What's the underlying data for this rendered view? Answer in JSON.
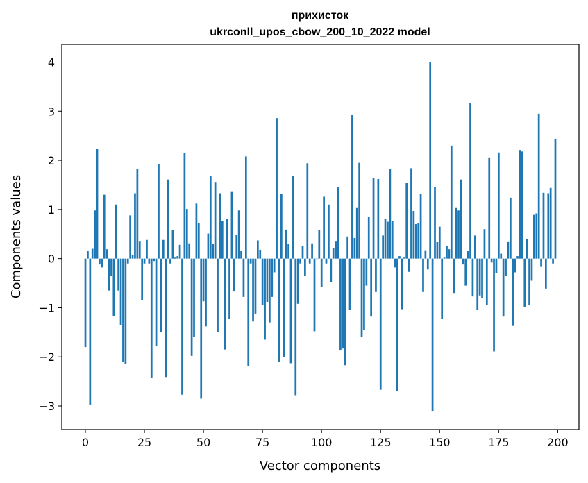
{
  "chart_data": {
    "type": "bar",
    "title": "прихисток",
    "subtitle": "ukrconll_upos_cbow_200_10_2022 model",
    "xlabel": "Vector components",
    "ylabel": "Components values",
    "xlim": [
      -10,
      209
    ],
    "ylim": [
      -3.48,
      4.36
    ],
    "xticks": [
      0,
      25,
      50,
      75,
      100,
      125,
      150,
      175,
      200
    ],
    "yticks": [
      -3,
      -2,
      -1,
      0,
      1,
      2,
      3,
      4
    ],
    "bar_color": "#1f77b4",
    "grid": false,
    "values": [
      -1.8,
      0.15,
      -2.97,
      0.2,
      0.98,
      2.24,
      -0.12,
      -0.18,
      1.3,
      0.19,
      -0.65,
      -0.35,
      -1.17,
      1.1,
      -0.65,
      -1.35,
      -2.1,
      -2.15,
      -0.1,
      0.88,
      0.08,
      1.33,
      1.83,
      0.36,
      -0.84,
      -0.1,
      0.38,
      -0.1,
      -2.43,
      -0.05,
      -1.78,
      1.93,
      -1.5,
      0.38,
      -2.41,
      1.61,
      -0.1,
      0.58,
      0.02,
      0.05,
      0.28,
      -2.77,
      2.15,
      1.01,
      0.31,
      -1.98,
      -1.6,
      1.12,
      0.73,
      -2.85,
      -0.87,
      -1.38,
      0.51,
      1.69,
      0.3,
      1.56,
      -1.5,
      1.33,
      0.77,
      -1.85,
      0.8,
      -1.22,
      1.37,
      -0.67,
      0.48,
      0.98,
      0.16,
      -0.78,
      2.08,
      -2.18,
      -0.1,
      -1.28,
      -1.12,
      0.37,
      0.18,
      -0.95,
      -1.65,
      -0.88,
      -1.3,
      -0.78,
      -0.28,
      2.86,
      -2.1,
      1.31,
      -2.0,
      0.59,
      0.3,
      -2.13,
      1.69,
      -2.78,
      -0.92,
      -0.1,
      0.25,
      -0.35,
      1.94,
      -0.1,
      0.31,
      -1.48,
      0.0,
      0.58,
      -0.58,
      1.26,
      -0.1,
      1.1,
      -0.48,
      0.22,
      0.36,
      1.46,
      -1.87,
      -1.83,
      -2.17,
      0.45,
      -1.05,
      2.93,
      0.42,
      1.03,
      1.95,
      -1.6,
      -1.45,
      -0.55,
      0.85,
      -1.18,
      1.64,
      -0.68,
      1.62,
      -2.67,
      0.47,
      0.81,
      0.75,
      1.82,
      0.77,
      -0.18,
      -2.69,
      0.05,
      -1.03,
      0.02,
      1.54,
      -0.27,
      1.84,
      0.97,
      0.7,
      0.72,
      1.32,
      -0.68,
      0.17,
      -0.22,
      4.0,
      -3.1,
      1.45,
      0.34,
      0.65,
      -1.23,
      0.02,
      0.26,
      0.19,
      2.3,
      -0.7,
      1.03,
      0.98,
      1.61,
      -0.12,
      -0.55,
      0.16,
      3.16,
      -0.77,
      0.47,
      -1.04,
      -0.75,
      -0.8,
      0.6,
      -0.95,
      2.06,
      -0.08,
      -1.89,
      -0.3,
      2.16,
      0.1,
      -1.18,
      -0.35,
      0.35,
      1.24,
      -1.37,
      -0.28,
      0.05,
      2.21,
      2.18,
      -0.98,
      0.4,
      -0.94,
      -0.45,
      0.89,
      0.92,
      2.95,
      -0.17,
      1.34,
      -0.61,
      1.33,
      1.44,
      -0.1,
      2.44
    ]
  }
}
